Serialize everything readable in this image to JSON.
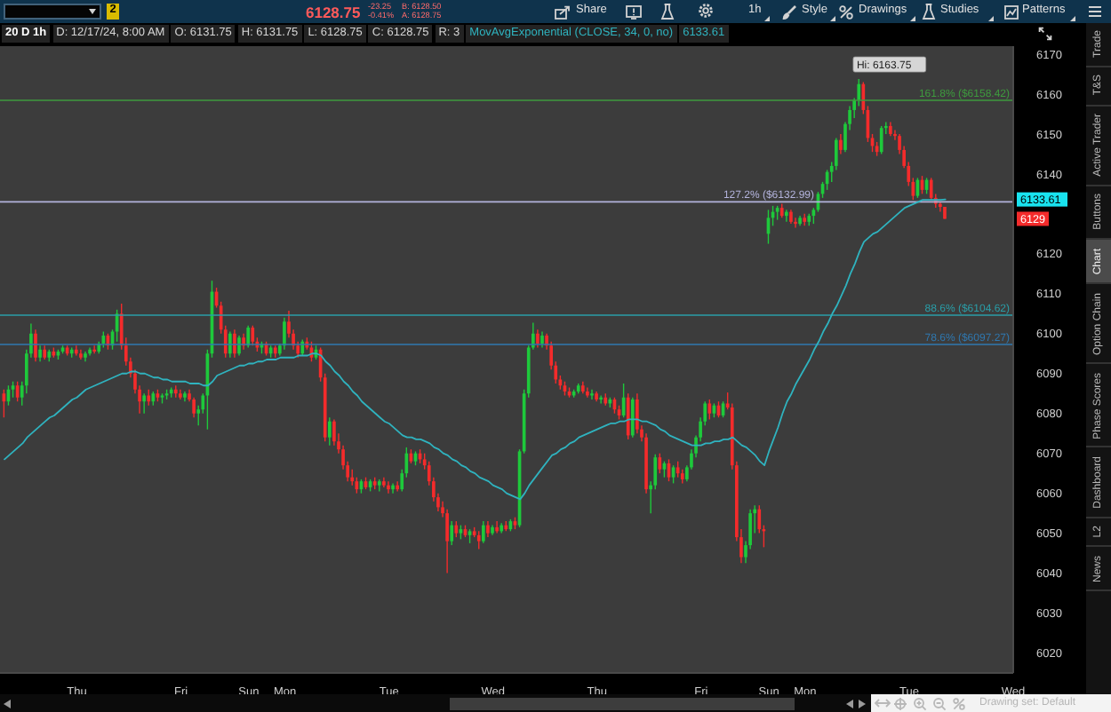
{
  "chart_data": {
    "type": "candlestick",
    "title": "20 D 1h",
    "categories": [
      null,
      null,
      null,
      null,
      null,
      null,
      null,
      null,
      null,
      null,
      null,
      null,
      null,
      null,
      null,
      null,
      "Thu",
      null,
      null,
      null,
      null,
      null,
      null,
      null,
      null,
      null,
      null,
      null,
      null,
      null,
      null,
      null,
      null,
      null,
      null,
      null,
      null,
      null,
      null,
      "Fri",
      null,
      null,
      null,
      null,
      null,
      null,
      null,
      null,
      null,
      null,
      null,
      null,
      null,
      null,
      "Sun",
      null,
      null,
      null,
      null,
      null,
      null,
      null,
      "Mon",
      null,
      null,
      null,
      null,
      null,
      null,
      null,
      null,
      null,
      null,
      null,
      null,
      null,
      null,
      null,
      null,
      null,
      null,
      null,
      null,
      null,
      null,
      "Tue",
      null,
      null,
      null,
      null,
      null,
      null,
      null,
      null,
      null,
      null,
      null,
      null,
      null,
      null,
      null,
      null,
      null,
      null,
      null,
      null,
      null,
      null,
      "Wed",
      null,
      null,
      null,
      null,
      null,
      null,
      null,
      null,
      null,
      null,
      null,
      null,
      null,
      null,
      null,
      null,
      null,
      null,
      null,
      null,
      null,
      null,
      "Thu",
      null,
      null,
      null,
      null,
      null,
      null,
      null,
      null,
      null,
      null,
      null,
      null,
      null,
      null,
      null,
      null,
      null,
      null,
      null,
      null,
      null,
      null,
      "Fri",
      null,
      null,
      null,
      null,
      null,
      null,
      null,
      null,
      null,
      null,
      null,
      null,
      null,
      null,
      "Sun",
      null,
      null,
      null,
      null,
      null,
      null,
      null,
      "Mon",
      null,
      null,
      null,
      null,
      null,
      null,
      null,
      null,
      null,
      null,
      null,
      null,
      null,
      null,
      null,
      null,
      null,
      null,
      null,
      null,
      null,
      null,
      "Tue",
      null,
      null,
      null,
      null,
      null,
      null,
      null,
      null,
      null,
      null,
      null,
      null,
      null,
      null,
      null,
      null,
      null,
      null,
      null,
      null,
      null,
      null,
      "Wed"
    ],
    "ohlc": [
      [
        6085,
        6086,
        6079,
        6083
      ],
      [
        6083,
        6087,
        6082,
        6086
      ],
      [
        6086,
        6088,
        6084,
        6087
      ],
      [
        6087,
        6088,
        6083,
        6084
      ],
      [
        6084,
        6088,
        6082,
        6087
      ],
      [
        6087,
        6096,
        6085,
        6095
      ],
      [
        6095,
        6102.5,
        6094,
        6100
      ],
      [
        6100,
        6101,
        6093,
        6094
      ],
      [
        6094,
        6097,
        6093,
        6096
      ],
      [
        6096,
        6097,
        6093.5,
        6094
      ],
      [
        6094,
        6096,
        6093,
        6095.5
      ],
      [
        6095.5,
        6096.5,
        6094,
        6094.5
      ],
      [
        6094.5,
        6096,
        6093.5,
        6095.5
      ],
      [
        6095.5,
        6097,
        6095,
        6096.5
      ],
      [
        6096.5,
        6097,
        6094.5,
        6095
      ],
      [
        6095,
        6096.5,
        6094,
        6096
      ],
      [
        6096,
        6097,
        6094.5,
        6095
      ],
      [
        6095,
        6096,
        6093.5,
        6094
      ],
      [
        6094,
        6095.5,
        6093,
        6095
      ],
      [
        6095,
        6096.5,
        6094.5,
        6096
      ],
      [
        6096,
        6097,
        6095,
        6095.5
      ],
      [
        6095.5,
        6098,
        6095,
        6097.5
      ],
      [
        6097.5,
        6100.5,
        6096.5,
        6099.5
      ],
      [
        6099.5,
        6100,
        6096,
        6097
      ],
      [
        6097,
        6101,
        6096,
        6100.5
      ],
      [
        6100.5,
        6106,
        6098,
        6105
      ],
      [
        6105,
        6107.5,
        6096,
        6097
      ],
      [
        6097,
        6099,
        6092,
        6093
      ],
      [
        6093,
        6094,
        6089,
        6090
      ],
      [
        6090,
        6091,
        6085,
        6086
      ],
      [
        6086,
        6087,
        6080,
        6083
      ],
      [
        6083,
        6085,
        6080,
        6084.5
      ],
      [
        6084.5,
        6086,
        6082,
        6083
      ],
      [
        6083,
        6085.5,
        6082,
        6085
      ],
      [
        6085,
        6086,
        6083,
        6084
      ],
      [
        6084,
        6085,
        6082.5,
        6084.5
      ],
      [
        6084.5,
        6086,
        6083.5,
        6085
      ],
      [
        6085,
        6086.5,
        6084,
        6086
      ],
      [
        6086,
        6087,
        6084,
        6085
      ],
      [
        6085,
        6086,
        6083.5,
        6084
      ],
      [
        6084,
        6085.5,
        6083,
        6085
      ],
      [
        6085,
        6086,
        6083,
        6083.5
      ],
      [
        6083.5,
        6084,
        6079,
        6080
      ],
      [
        6080,
        6082,
        6077,
        6081
      ],
      [
        6081,
        6085,
        6080,
        6084.5
      ],
      [
        6084.5,
        6096,
        6076,
        6095
      ],
      [
        6095,
        6113.25,
        6094,
        6110.5
      ],
      [
        6110.5,
        6111.5,
        6106.5,
        6107
      ],
      [
        6107,
        6108,
        6100,
        6101
      ],
      [
        6101,
        6102,
        6094,
        6095
      ],
      [
        6095,
        6100.5,
        6094,
        6100
      ],
      [
        6100,
        6101,
        6094,
        6095
      ],
      [
        6095,
        6099.5,
        6094.5,
        6099
      ],
      [
        6099,
        6100,
        6096,
        6097
      ],
      [
        6097,
        6102,
        6096.5,
        6101.5
      ],
      [
        6101.5,
        6102,
        6097,
        6098
      ],
      [
        6098,
        6099,
        6095.5,
        6096.5
      ],
      [
        6096.5,
        6098,
        6095,
        6097.5
      ],
      [
        6097.5,
        6098,
        6094.5,
        6095
      ],
      [
        6095,
        6097,
        6094,
        6096.5
      ],
      [
        6096.5,
        6097,
        6094,
        6095
      ],
      [
        6095,
        6097.5,
        6094.5,
        6097
      ],
      [
        6097,
        6104,
        6096,
        6103
      ],
      [
        6103,
        6105.75,
        6099,
        6100
      ],
      [
        6100,
        6101,
        6096,
        6097
      ],
      [
        6097,
        6098,
        6094,
        6095
      ],
      [
        6095,
        6098.5,
        6094.5,
        6098
      ],
      [
        6098,
        6099,
        6096,
        6096.5
      ],
      [
        6096.5,
        6098,
        6093,
        6094
      ],
      [
        6094,
        6097,
        6093.5,
        6096
      ],
      [
        6096,
        6096.5,
        6088,
        6089
      ],
      [
        6089,
        6090,
        6073,
        6074
      ],
      [
        6074,
        6079,
        6072,
        6078
      ],
      [
        6078,
        6078.5,
        6072,
        6073
      ],
      [
        6073,
        6075,
        6070,
        6071
      ],
      [
        6071,
        6072,
        6066,
        6067
      ],
      [
        6067,
        6068,
        6063,
        6064
      ],
      [
        6064,
        6066,
        6062,
        6063
      ],
      [
        6063,
        6064,
        6060,
        6061
      ],
      [
        6061,
        6063.5,
        6060,
        6063
      ],
      [
        6063,
        6064,
        6061,
        6061.5
      ],
      [
        6061.5,
        6063.5,
        6060.5,
        6063
      ],
      [
        6063,
        6064,
        6061,
        6062
      ],
      [
        6062,
        6063.5,
        6060.5,
        6063
      ],
      [
        6063,
        6064,
        6061.5,
        6062
      ],
      [
        6062,
        6063,
        6060,
        6061
      ],
      [
        6061,
        6062.5,
        6060,
        6062
      ],
      [
        6062,
        6063,
        6060.5,
        6061
      ],
      [
        6061,
        6066,
        6060.5,
        6065
      ],
      [
        6065,
        6071.5,
        6064,
        6070
      ],
      [
        6070,
        6071,
        6067.5,
        6068
      ],
      [
        6068,
        6070.5,
        6067,
        6070
      ],
      [
        6070,
        6071,
        6067.5,
        6068.5
      ],
      [
        6068.5,
        6070,
        6066,
        6067
      ],
      [
        6067,
        6068,
        6062,
        6063
      ],
      [
        6063,
        6064,
        6058,
        6059
      ],
      [
        6059,
        6060,
        6055.5,
        6056.5
      ],
      [
        6056.5,
        6058,
        6054,
        6055
      ],
      [
        6055,
        6056,
        6040,
        6048
      ],
      [
        6048,
        6053,
        6047,
        6052
      ],
      [
        6052,
        6053,
        6049,
        6050
      ],
      [
        6050,
        6052,
        6048.5,
        6051
      ],
      [
        6051,
        6052,
        6049,
        6049.5
      ],
      [
        6049.5,
        6051,
        6047.5,
        6050.5
      ],
      [
        6050.5,
        6051.5,
        6049,
        6049.5
      ],
      [
        6049.5,
        6050.5,
        6046,
        6048
      ],
      [
        6048,
        6053,
        6047.5,
        6052
      ],
      [
        6052,
        6053,
        6049,
        6050
      ],
      [
        6050,
        6052,
        6049.5,
        6051.5
      ],
      [
        6051.5,
        6053,
        6050,
        6050.5
      ],
      [
        6050.5,
        6052.5,
        6050,
        6052
      ],
      [
        6052,
        6053,
        6050.5,
        6051
      ],
      [
        6051,
        6053.5,
        6050.5,
        6053
      ],
      [
        6053,
        6054,
        6051,
        6052
      ],
      [
        6052,
        6071,
        6051.5,
        6070.5
      ],
      [
        6070.5,
        6086,
        6070,
        6085
      ],
      [
        6085,
        6097,
        6084,
        6096.5
      ],
      [
        6096.5,
        6102.75,
        6096,
        6100
      ],
      [
        6100,
        6101,
        6096.5,
        6097.5
      ],
      [
        6097.5,
        6100.5,
        6096.5,
        6099.5
      ],
      [
        6099.5,
        6100,
        6096,
        6097
      ],
      [
        6097,
        6098,
        6091,
        6092
      ],
      [
        6092,
        6093,
        6087.5,
        6088.5
      ],
      [
        6088.5,
        6089.5,
        6086,
        6087
      ],
      [
        6087,
        6088,
        6084.5,
        6085.5
      ],
      [
        6085.5,
        6086.5,
        6084,
        6084.5
      ],
      [
        6084.5,
        6086,
        6084,
        6085.5
      ],
      [
        6085.5,
        6087.5,
        6085,
        6087
      ],
      [
        6087,
        6088,
        6085,
        6085.5
      ],
      [
        6085.5,
        6086.5,
        6084,
        6084.5
      ],
      [
        6084.5,
        6086,
        6083.5,
        6085
      ],
      [
        6085,
        6085.5,
        6083,
        6083.5
      ],
      [
        6083.5,
        6084.5,
        6082.5,
        6084
      ],
      [
        6084,
        6085,
        6082,
        6082.5
      ],
      [
        6082.5,
        6084,
        6081.5,
        6083.5
      ],
      [
        6083.5,
        6084,
        6080,
        6081
      ],
      [
        6081,
        6082,
        6078.5,
        6079.5
      ],
      [
        6079.5,
        6087.5,
        6079,
        6084
      ],
      [
        6084,
        6085,
        6073.5,
        6074.5
      ],
      [
        6074.5,
        6084,
        6074,
        6083.5
      ],
      [
        6083.5,
        6085,
        6075,
        6076
      ],
      [
        6076,
        6077,
        6073,
        6074
      ],
      [
        6074,
        6075,
        6060,
        6061
      ],
      [
        6061,
        6063,
        6055,
        6062
      ],
      [
        6062,
        6069.75,
        6061,
        6069
      ],
      [
        6069,
        6070,
        6065,
        6066
      ],
      [
        6066,
        6068,
        6064,
        6067.5
      ],
      [
        6067.5,
        6068.5,
        6063,
        6064
      ],
      [
        6064,
        6067,
        6062.5,
        6066.5
      ],
      [
        6066.5,
        6068,
        6064,
        6065
      ],
      [
        6065,
        6066,
        6062.5,
        6063.5
      ],
      [
        6063.5,
        6067,
        6063,
        6066.5
      ],
      [
        6066.5,
        6071,
        6066,
        6070
      ],
      [
        6070,
        6074.5,
        6069,
        6074
      ],
      [
        6074,
        6079,
        6073,
        6078
      ],
      [
        6078,
        6083,
        6077,
        6082.5
      ],
      [
        6082.5,
        6083.5,
        6078.5,
        6080
      ],
      [
        6080,
        6082.5,
        6079,
        6082
      ],
      [
        6082,
        6083,
        6079,
        6079.5
      ],
      [
        6079.5,
        6083,
        6079,
        6082.5
      ],
      [
        6082.5,
        6085.25,
        6081,
        6081.5
      ],
      [
        6081.5,
        6082.5,
        6066,
        6067
      ],
      [
        6067,
        6068,
        6048,
        6049
      ],
      [
        6049,
        6051,
        6042.5,
        6044
      ],
      [
        6044,
        6048,
        6042.5,
        6047
      ],
      [
        6047,
        6056,
        6046,
        6055
      ],
      [
        6055,
        6057,
        6050,
        6056
      ],
      [
        6056,
        6057,
        6050,
        6051
      ],
      [
        6051,
        6052,
        6046.5,
        6050.5
      ],
      [
        6125,
        6131,
        6122.5,
        6129
      ],
      [
        6129,
        6132,
        6127,
        6130.5
      ],
      [
        6130.5,
        6132,
        6128.5,
        6131.5
      ],
      [
        6131.5,
        6132.5,
        6129,
        6129.5
      ],
      [
        6129.5,
        6131,
        6128,
        6130.5
      ],
      [
        6130.5,
        6131,
        6127.5,
        6128
      ],
      [
        6128,
        6129,
        6126.5,
        6127.5
      ],
      [
        6127.5,
        6129.5,
        6127,
        6129
      ],
      [
        6129,
        6130,
        6127,
        6128
      ],
      [
        6128,
        6130,
        6127,
        6129.5
      ],
      [
        6129.5,
        6131.5,
        6127.5,
        6131
      ],
      [
        6131,
        6135.5,
        6130.5,
        6135
      ],
      [
        6135,
        6138,
        6134,
        6137.5
      ],
      [
        6137.5,
        6141,
        6136,
        6140.5
      ],
      [
        6140.5,
        6143,
        6138,
        6142
      ],
      [
        6142,
        6149,
        6141,
        6148.5
      ],
      [
        6148.5,
        6150,
        6145,
        6146
      ],
      [
        6146,
        6153,
        6145.5,
        6152.5
      ],
      [
        6152.5,
        6157,
        6151,
        6156
      ],
      [
        6156,
        6159,
        6154,
        6158.5
      ],
      [
        6158.5,
        6163.75,
        6157,
        6162.5
      ],
      [
        6162.5,
        6163,
        6155,
        6156
      ],
      [
        6156,
        6157,
        6148,
        6149
      ],
      [
        6149,
        6150,
        6145.5,
        6147
      ],
      [
        6147,
        6148,
        6144.5,
        6145.5
      ],
      [
        6145.5,
        6152,
        6145,
        6151.5
      ],
      [
        6151.5,
        6153,
        6150,
        6152
      ],
      [
        6152,
        6153,
        6149.5,
        6150
      ],
      [
        6150,
        6151,
        6148.5,
        6149.5
      ],
      [
        6149.5,
        6150,
        6145,
        6146
      ],
      [
        6146,
        6147,
        6141.5,
        6142
      ],
      [
        6142,
        6143,
        6137,
        6138
      ],
      [
        6138,
        6139,
        6133.5,
        6134.5
      ],
      [
        6134.5,
        6139,
        6134,
        6138.5
      ],
      [
        6138.5,
        6139.5,
        6135,
        6136
      ],
      [
        6136,
        6139,
        6135,
        6138.5
      ],
      [
        6138.5,
        6139,
        6133.5,
        6134
      ],
      [
        6134,
        6135,
        6131.5,
        6132.5
      ],
      [
        6132.5,
        6133,
        6130.5,
        6131.75
      ],
      [
        6131.75,
        6131.75,
        6128.75,
        6128.75
      ],
      null,
      null,
      null,
      null,
      null,
      null,
      null,
      null,
      null,
      null,
      null,
      null,
      null,
      null,
      null
    ],
    "colors": [
      "#f42b2b",
      "#1ec93b",
      "#1ec93b",
      "#f42b2b",
      "#1ec93b",
      "#1ec93b",
      "#1ec93b",
      "#f42b2b",
      "#1ec93b",
      "#f42b2b",
      "#1ec93b",
      "#f42b2b",
      "#1ec93b",
      "#1ec93b",
      "#f42b2b",
      "#1ec93b",
      "#f42b2b",
      "#f42b2b",
      "#1ec93b",
      "#1ec93b",
      "#f42b2b",
      "#1ec93b",
      "#1ec93b",
      "#f42b2b",
      "#1ec93b",
      "#1ec93b",
      "#f42b2b",
      "#f42b2b",
      "#f42b2b",
      "#f42b2b",
      "#f42b2b",
      "#1ec93b",
      "#f42b2b",
      "#1ec93b",
      "#f42b2b",
      "#1ec93b",
      "#1ec93b",
      "#1ec93b",
      "#f42b2b",
      "#f42b2b",
      "#1ec93b",
      "#f42b2b",
      "#f42b2b",
      "#1ec93b",
      "#1ec93b",
      "#1ec93b",
      "#1ec93b",
      "#f42b2b",
      "#f42b2b",
      "#f42b2b",
      "#1ec93b",
      "#f42b2b",
      "#1ec93b",
      "#f42b2b",
      "#1ec93b",
      "#f42b2b",
      "#f42b2b",
      "#1ec93b",
      "#f42b2b",
      "#1ec93b",
      "#f42b2b",
      "#1ec93b",
      "#1ec93b",
      "#f42b2b",
      "#f42b2b",
      "#f42b2b",
      "#1ec93b",
      "#f42b2b",
      "#f42b2b",
      "#1ec93b",
      "#f42b2b",
      "#f42b2b",
      "#1ec93b",
      "#f42b2b",
      "#f42b2b",
      "#f42b2b",
      "#f42b2b",
      "#f42b2b",
      "#f42b2b",
      "#1ec93b",
      "#f42b2b",
      "#1ec93b",
      "#f42b2b",
      "#1ec93b",
      "#f42b2b",
      "#f42b2b",
      "#1ec93b",
      "#f42b2b",
      "#1ec93b",
      "#1ec93b",
      "#f42b2b",
      "#1ec93b",
      "#f42b2b",
      "#f42b2b",
      "#f42b2b",
      "#f42b2b",
      "#f42b2b",
      "#f42b2b",
      "#f42b2b",
      "#1ec93b",
      "#f42b2b",
      "#1ec93b",
      "#f42b2b",
      "#1ec93b",
      "#f42b2b",
      "#f42b2b",
      "#1ec93b",
      "#f42b2b",
      "#1ec93b",
      "#f42b2b",
      "#1ec93b",
      "#f42b2b",
      "#1ec93b",
      "#f42b2b",
      "#1ec93b",
      "#1ec93b",
      "#1ec93b",
      "#1ec93b",
      "#f42b2b",
      "#1ec93b",
      "#f42b2b",
      "#f42b2b",
      "#f42b2b",
      "#f42b2b",
      "#f42b2b",
      "#f42b2b",
      "#1ec93b",
      "#1ec93b",
      "#f42b2b",
      "#f42b2b",
      "#1ec93b",
      "#f42b2b",
      "#1ec93b",
      "#f42b2b",
      "#1ec93b",
      "#f42b2b",
      "#f42b2b",
      "#1ec93b",
      "#f42b2b",
      "#1ec93b",
      "#f42b2b",
      "#f42b2b",
      "#f42b2b",
      "#1ec93b",
      "#1ec93b",
      "#f42b2b",
      "#1ec93b",
      "#f42b2b",
      "#1ec93b",
      "#f42b2b",
      "#f42b2b",
      "#1ec93b",
      "#1ec93b",
      "#1ec93b",
      "#1ec93b",
      "#1ec93b",
      "#f42b2b",
      "#1ec93b",
      "#f42b2b",
      "#1ec93b",
      "#f42b2b",
      "#f42b2b",
      "#f42b2b",
      "#f42b2b",
      "#1ec93b",
      "#1ec93b",
      "#1ec93b",
      "#f42b2b",
      "#f42b2b",
      "#1ec93b",
      "#1ec93b",
      "#1ec93b",
      "#f42b2b",
      "#1ec93b",
      "#f42b2b",
      "#f42b2b",
      "#1ec93b",
      "#f42b2b",
      "#1ec93b",
      "#1ec93b",
      "#1ec93b",
      "#1ec93b",
      "#1ec93b",
      "#1ec93b",
      "#1ec93b",
      "#f42b2b",
      "#1ec93b",
      "#1ec93b",
      "#1ec93b",
      "#1ec93b",
      "#f42b2b",
      "#f42b2b",
      "#f42b2b",
      "#f42b2b",
      "#1ec93b",
      "#1ec93b",
      "#f42b2b",
      "#f42b2b",
      "#f42b2b",
      "#f42b2b",
      "#f42b2b",
      "#f42b2b",
      "#1ec93b",
      "#f42b2b",
      "#1ec93b",
      "#f42b2b",
      "#f42b2b",
      "#f42b2b",
      "#f42b2b",
      null,
      null,
      null,
      null,
      null,
      null,
      null,
      null,
      null,
      null,
      null,
      null,
      null,
      null,
      null
    ],
    "series": [
      {
        "type": "line",
        "name": "MovAvgExponential (CLOSE, 34, 0, no)",
        "color": "#2fb3bf",
        "values": [
          6068.5,
          6069.5,
          6070.5,
          6071.5,
          6072.5,
          6074,
          6075,
          6076,
          6077,
          6078,
          6079,
          6079.5,
          6080.5,
          6081.5,
          6082.5,
          6083.5,
          6084,
          6085,
          6086,
          6086.5,
          6087,
          6087.5,
          6088,
          6088.5,
          6089,
          6089.5,
          6090,
          6090,
          6090.5,
          6090.5,
          6090,
          6090,
          6089.5,
          6089,
          6089,
          6088.5,
          6088.5,
          6088,
          6088,
          6088,
          6088,
          6087.5,
          6087.5,
          6087.5,
          6087,
          6087,
          6088,
          6089.5,
          6090,
          6090.5,
          6091,
          6091.5,
          6092,
          6092,
          6092.5,
          6092.5,
          6093,
          6093,
          6093.5,
          6093.5,
          6093.5,
          6094,
          6094,
          6094,
          6094,
          6094.5,
          6094.5,
          6094.5,
          6095,
          6095,
          6094.5,
          6093,
          6092,
          6090.5,
          6089.5,
          6088,
          6087,
          6085.5,
          6084.5,
          6083,
          6082,
          6081,
          6080,
          6079,
          6078,
          6077.5,
          6076.5,
          6075.5,
          6074.5,
          6074,
          6074,
          6073.5,
          6073.5,
          6073,
          6072.5,
          6071.5,
          6071,
          6070,
          6069.5,
          6068.5,
          6068,
          6067,
          6066.5,
          6065.5,
          6065,
          6064,
          6063.5,
          6063,
          6062,
          6061.5,
          6061,
          6060,
          6059.5,
          6059,
          6058.5,
          6060,
          6062,
          6063.5,
          6065,
          6066.5,
          6068,
          6069.5,
          6070,
          6071,
          6071.5,
          6072.5,
          6073,
          6074,
          6074.5,
          6075,
          6075.5,
          6076,
          6076.5,
          6077,
          6077.5,
          6077.5,
          6078,
          6078,
          6078.5,
          6078.5,
          6078.5,
          6078,
          6078,
          6077.5,
          6077,
          6076,
          6075.5,
          6074.5,
          6074,
          6073.5,
          6073,
          6072.5,
          6072,
          6072,
          6072,
          6072.5,
          6072.5,
          6073,
          6073,
          6073.5,
          6073.5,
          6074,
          6073,
          6072,
          6071.5,
          6070.5,
          6069.5,
          6068,
          6067,
          6070.5,
          6073.5,
          6076.5,
          6080,
          6083,
          6085,
          6087.5,
          6089.5,
          6091.5,
          6093.5,
          6096,
          6098,
          6100.5,
          6102.5,
          6105,
          6107,
          6109.5,
          6112,
          6115,
          6117.5,
          6120.5,
          6123,
          6124,
          6125,
          6125.5,
          6126.5,
          6127.5,
          6128.5,
          6129.5,
          6130.5,
          6131.5,
          6132,
          6132.5,
          6133,
          6133.5,
          6133.5,
          6133.5,
          6133.5,
          6133.5,
          6133.61,
          null,
          null,
          null,
          null,
          null,
          null,
          null,
          null,
          null,
          null,
          null,
          null,
          null,
          null,
          null
        ]
      }
    ],
    "ylim": [
      6015,
      6172
    ],
    "yticks": [
      6020,
      6030,
      6040,
      6050,
      6060,
      6070,
      6080,
      6090,
      6100,
      6110,
      6120,
      6140,
      6150,
      6160,
      6170
    ],
    "ref_lines": [
      {
        "axis": "y",
        "value": 6158.42,
        "label": "161.8% ($6158.42)",
        "color": "#3e9a3e"
      },
      {
        "axis": "y",
        "value": 6132.99,
        "label": "127.2% ($6132.99)",
        "color": "#b3b3dc"
      },
      {
        "axis": "y",
        "value": 6104.62,
        "label": "88.6% ($6104.62)",
        "color": "#2a9ea8"
      },
      {
        "axis": "y",
        "value": 6097.27,
        "label": "78.6% ($6097.27)",
        "color": "#2f78b0"
      }
    ],
    "annotations": [
      "Hi: 6163.75",
      "6133.61",
      "6129",
      "2",
      "6128.75",
      "-23.25",
      "-0.41%",
      "B: 6128.50",
      "A: 6128.75",
      "Share",
      "1h",
      "Style",
      "Drawings",
      "Studies",
      "Patterns",
      "D: 12/17/24, 8:00 AM",
      "O: 6131.75",
      "H: 6131.75",
      "L: 6128.75",
      "C: 6128.75",
      "R: 3",
      "6133.61",
      "Trade",
      "T&S",
      "Active Trader",
      "Buttons",
      "Chart",
      "Option Chain",
      "Phase Scores",
      "Dashboard",
      "L2",
      "News",
      "Drawing set: Default"
    ]
  }
}
